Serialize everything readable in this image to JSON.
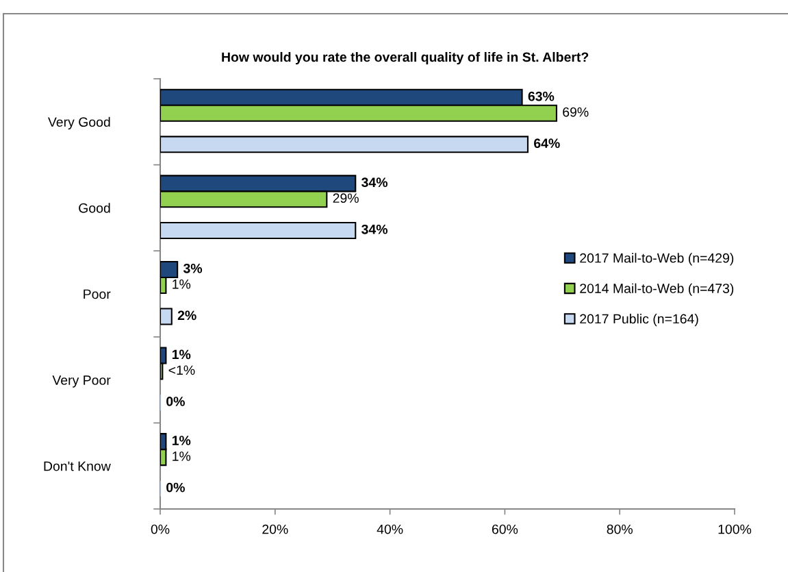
{
  "chart_data": {
    "type": "bar",
    "orientation": "horizontal",
    "title": "How would you rate the overall quality of life in St. Albert?",
    "categories": [
      "Very Good",
      "Good",
      "Poor",
      "Very Poor",
      "Don't Know"
    ],
    "series": [
      {
        "name": "2017 Mail-to-Web (n=429)",
        "color": "#1f497d",
        "values": [
          63,
          34,
          3,
          1,
          1
        ],
        "value_labels": [
          "63%",
          "34%",
          "3%",
          "1%",
          "1%"
        ]
      },
      {
        "name": "2014 Mail-to-Web (n=473)",
        "color": "#92d050",
        "values": [
          69,
          29,
          1,
          0.4,
          1
        ],
        "value_labels": [
          "69%",
          "29%",
          "1%",
          "<1%",
          "1%"
        ]
      },
      {
        "name": "2017 Public (n=164)",
        "color": "#c6d9f1",
        "values": [
          64,
          34,
          2,
          0,
          0
        ],
        "value_labels": [
          "64%",
          "34%",
          "2%",
          "0%",
          "0%"
        ]
      }
    ],
    "xlim": [
      0,
      100
    ],
    "xticks": [
      {
        "value": 0,
        "label": "0%"
      },
      {
        "value": 20,
        "label": "20%"
      },
      {
        "value": 40,
        "label": "40%"
      },
      {
        "value": 60,
        "label": "60%"
      },
      {
        "value": 80,
        "label": "80%"
      },
      {
        "value": 100,
        "label": "100%"
      }
    ],
    "grid": false,
    "legend": "right"
  }
}
